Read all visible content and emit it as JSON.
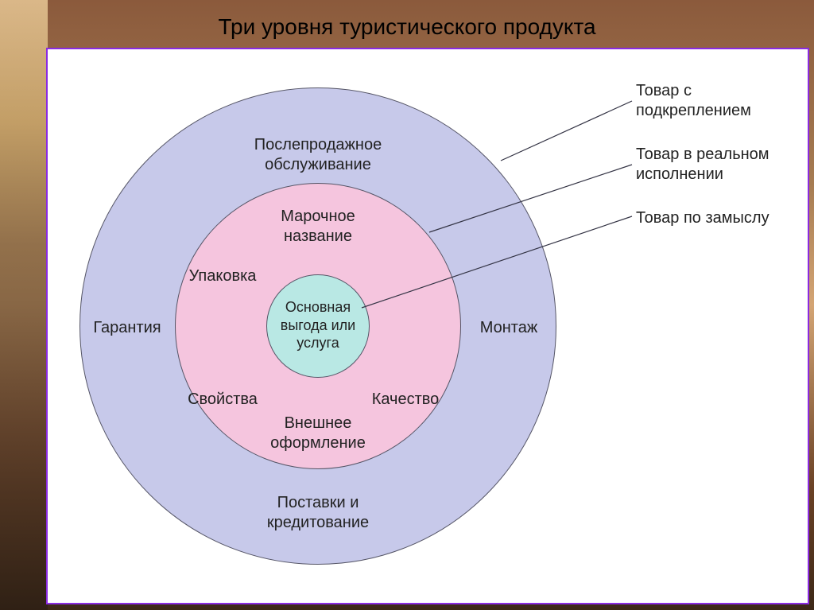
{
  "title": "Три уровня туристического продукта",
  "diagram": {
    "type": "concentric",
    "background_color": "#ffffff",
    "frame_border_color": "#8a2be2",
    "circles": {
      "outer": {
        "fill": "#c7c9ea",
        "stroke": "#555566",
        "labels": {
          "top": "Послепродажное\nобслуживание",
          "left": "Гарантия",
          "right": "Монтаж",
          "bottom": "Поставки и\nкредитование"
        }
      },
      "middle": {
        "fill": "#f5c5de",
        "stroke": "#555566",
        "labels": {
          "top": "Марочное\nназвание",
          "top_left": "Упаковка",
          "bottom_left": "Свойства",
          "bottom_right": "Качество",
          "bottom": "Внешнее\nоформление"
        }
      },
      "inner": {
        "fill": "#b9e8e4",
        "stroke": "#555566",
        "label": "Основная\nвыгода или\nуслуга"
      }
    },
    "legend": [
      {
        "text": "Товар с\nподкреплением",
        "target": "outer"
      },
      {
        "text": "Товар в реальном\nисполнении",
        "target": "middle"
      },
      {
        "text": "Товар по замыслу",
        "target": "inner"
      }
    ],
    "label_fontsize": 20,
    "inner_fontsize": 18,
    "legend_fontsize": 20,
    "title_fontsize": 28,
    "line_color": "#333344"
  }
}
